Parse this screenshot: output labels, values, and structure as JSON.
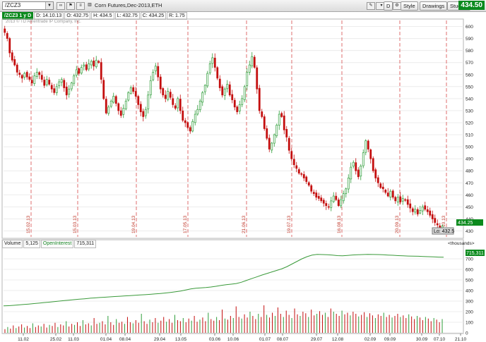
{
  "toolbar": {
    "symbol": "/ZCZ3",
    "description": "Corn Futures,Dec-2013,ETH",
    "buttons": {
      "d": "D",
      "style": "Style",
      "drawings": "Drawings",
      "studies": "Studies"
    },
    "last_price": "434.50"
  },
  "info_bar": {
    "symbol_tag": "/ZCZ3 1 y D",
    "date": "D: 14.10.13",
    "open": "O: 432.75",
    "high": "H: 434.5",
    "low": "L: 432.75",
    "close": "C: 434.25",
    "range": "R: 1.75"
  },
  "watermark": "2013 © TD Ameritrade IP Company, Inc.",
  "volume_panel": {
    "volume_label": "Volume",
    "volume_value": "5,125",
    "oi_label": "OpenInterest",
    "oi_value": "715,311",
    "units": "<thousands>",
    "oi_last_tag": "715,311"
  },
  "price_tags": {
    "last": "434.25",
    "low": "Lo: 432.5"
  },
  "colors": {
    "up": "#2f9d3a",
    "down": "#c40e0e",
    "oi_line": "#3a9a3a",
    "divider": "#d84b4b",
    "tag_green": "#0b8a1d"
  },
  "chart_data": [
    {
      "type": "candlestick",
      "series": "Corn Futures Dec-2013 daily OHLC (approximate closes)",
      "x_tick_labels": [
        "11.02",
        "25.02",
        "11.03",
        "01.04",
        "08.04",
        "29.04",
        "13.05",
        "03.06",
        "10.06",
        "01.07",
        "08.07",
        "29.07",
        "12.08",
        "02.09",
        "09.09",
        "30.09",
        "07.10",
        "21.10"
      ],
      "y_ticks": [
        430,
        440,
        450,
        460,
        470,
        480,
        490,
        500,
        510,
        520,
        530,
        540,
        550,
        560,
        570,
        580,
        590,
        600
      ],
      "ylim": [
        425,
        605
      ],
      "vertical_markers": [
        "15.02.13",
        "15.03.13",
        "19.04.13",
        "17.05.13",
        "21.06.13",
        "19.07.13",
        "16.08.13",
        "20.09.13",
        "18.10.13"
      ],
      "closes": [
        595,
        590,
        578,
        572,
        568,
        562,
        560,
        557,
        561,
        558,
        556,
        553,
        559,
        562,
        560,
        556,
        551,
        556,
        552,
        548,
        545,
        550,
        554,
        556,
        549,
        543,
        548,
        553,
        559,
        564,
        561,
        566,
        568,
        564,
        569,
        571,
        567,
        572,
        570,
        556,
        540,
        528,
        533,
        538,
        542,
        536,
        530,
        526,
        532,
        538,
        545,
        549,
        546,
        542,
        535,
        529,
        525,
        531,
        543,
        555,
        562,
        567,
        558,
        548,
        543,
        540,
        546,
        541,
        535,
        532,
        540,
        530,
        522,
        520,
        516,
        513,
        521,
        527,
        531,
        538,
        545,
        551,
        561,
        569,
        574,
        566,
        557,
        549,
        543,
        548,
        552,
        543,
        539,
        533,
        529,
        535,
        540,
        550,
        562,
        568,
        575,
        566,
        548,
        530,
        525,
        515,
        507,
        498,
        503,
        510,
        518,
        527,
        525,
        514,
        508,
        497,
        490,
        485,
        482,
        478,
        477,
        474,
        471,
        468,
        463,
        461,
        458,
        457,
        455,
        453,
        451,
        450,
        455,
        459,
        456,
        451,
        456,
        461,
        465,
        474,
        483,
        487,
        480,
        475,
        484,
        495,
        505,
        498,
        490,
        480,
        474,
        470,
        466,
        465,
        462,
        459,
        463,
        458,
        455,
        458,
        454,
        457,
        456,
        452,
        449,
        446,
        448,
        444,
        447,
        450,
        448,
        446,
        443,
        440,
        437,
        435,
        433,
        434
      ]
    },
    {
      "type": "line",
      "series": "OpenInterest",
      "y_ticks": [
        0,
        100,
        200,
        300,
        400,
        500,
        600,
        700
      ],
      "ylim": [
        0,
        800
      ],
      "values": [
        255,
        257,
        260,
        264,
        268,
        272,
        277,
        281,
        286,
        290,
        295,
        300,
        305,
        309,
        314,
        318,
        322,
        327,
        330,
        334,
        337,
        340,
        343,
        346,
        349,
        352,
        355,
        358,
        361,
        364,
        368,
        372,
        377,
        382,
        388,
        395,
        405,
        415,
        422,
        425,
        428,
        433,
        440,
        448,
        455,
        460,
        466,
        478,
        495,
        512,
        528,
        545,
        560,
        575,
        590,
        605,
        625,
        650,
        675,
        700,
        720,
        735,
        742,
        740,
        738,
        735,
        730,
        728,
        732,
        736,
        738,
        740,
        742,
        741,
        740,
        738,
        735,
        733,
        730,
        728,
        726,
        725,
        724,
        722,
        720,
        718,
        716,
        715
      ]
    },
    {
      "type": "bar",
      "series": "Volume",
      "values": [
        35,
        55,
        40,
        70,
        45,
        60,
        80,
        50,
        65,
        45,
        90,
        55,
        70,
        60,
        85,
        50,
        75,
        65,
        95,
        55,
        80,
        70,
        110,
        60,
        85,
        75,
        100,
        65,
        120,
        80,
        90,
        70,
        140,
        85,
        95,
        110,
        80,
        160,
        100,
        75,
        130,
        95,
        105,
        85,
        150,
        100,
        90,
        120,
        95,
        180,
        110,
        85,
        125,
        100,
        140,
        95,
        115,
        150,
        105,
        130,
        95,
        170,
        120,
        110,
        140,
        100,
        135,
        115,
        160,
        105,
        125,
        145,
        110,
        190,
        130,
        115,
        150,
        120,
        220,
        135,
        125,
        160,
        140,
        250,
        150,
        135,
        175,
        145,
        200,
        160,
        130,
        180,
        150,
        260,
        170,
        145,
        190,
        160,
        240,
        180,
        150,
        210,
        170,
        140,
        230,
        175,
        160,
        200,
        185,
        150,
        220,
        165,
        180,
        205,
        170,
        190,
        150,
        230,
        200,
        180,
        160,
        210,
        175,
        190,
        165,
        200,
        180,
        155,
        170,
        195,
        150,
        185,
        165,
        140,
        175,
        160,
        190,
        150,
        170,
        145,
        160,
        180,
        150,
        165,
        140,
        175,
        155,
        130,
        160,
        145,
        120,
        150,
        135,
        110,
        140,
        125,
        100,
        130
      ]
    }
  ]
}
